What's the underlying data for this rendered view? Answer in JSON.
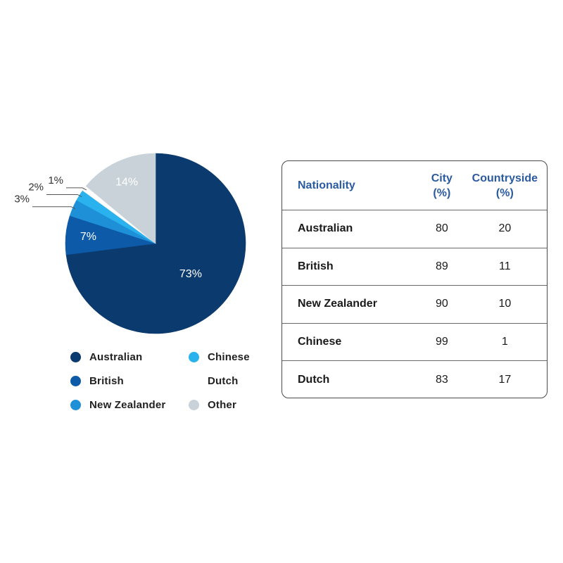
{
  "chart_data": [
    {
      "type": "pie",
      "slices": [
        {
          "name": "Australian",
          "value": 73,
          "label": "73%",
          "color": "#0b3a6e"
        },
        {
          "name": "British",
          "value": 7,
          "label": "7%",
          "color": "#0d5aa8"
        },
        {
          "name": "New Zealander",
          "value": 3,
          "label": "3%",
          "color": "#1e90d8"
        },
        {
          "name": "Chinese",
          "value": 2,
          "label": "2%",
          "color": "#29b2ee"
        },
        {
          "name": "Dutch",
          "value": 1,
          "label": "1%",
          "color": "#ffffff"
        },
        {
          "name": "Other",
          "value": 14,
          "label": "14%",
          "color": "#c8d2d8"
        }
      ],
      "legend": [
        {
          "name": "Australian",
          "color": "#0b3a6e"
        },
        {
          "name": "Chinese",
          "color": "#29b2ee"
        },
        {
          "name": "British",
          "color": "#0d5aa8"
        },
        {
          "name": "Dutch",
          "color": "#ffffff"
        },
        {
          "name": "New Zealander",
          "color": "#1e90d8"
        },
        {
          "name": "Other",
          "color": "#c8d2d8"
        }
      ],
      "legend_placement": "bottom"
    },
    {
      "type": "table",
      "columns": [
        {
          "line1": "Nationality",
          "line2": ""
        },
        {
          "line1": "City",
          "line2": "(%)"
        },
        {
          "line1": "Countryside",
          "line2": "(%)"
        }
      ],
      "rows": [
        [
          "Australian",
          "80",
          "20"
        ],
        [
          "British",
          "89",
          "11"
        ],
        [
          "New Zealander",
          "90",
          "10"
        ],
        [
          "Chinese",
          "99",
          "1"
        ],
        [
          "Dutch",
          "83",
          "17"
        ]
      ],
      "header_color": "#2a5aa0"
    }
  ]
}
